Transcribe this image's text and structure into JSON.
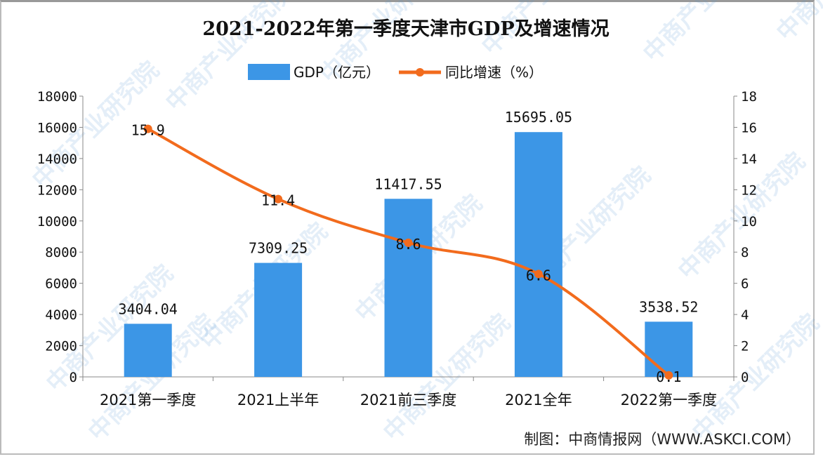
{
  "chart_data": {
    "type": "bar+line",
    "title": "2021-2022年第一季度天津市GDP及增速情况",
    "categories": [
      "2021第一季度",
      "2021上半年",
      "2021前三季度",
      "2021全年",
      "2022第一季度"
    ],
    "series": [
      {
        "name": "GDP（亿元）",
        "type": "bar",
        "axis": "left",
        "color": "#3c96e6",
        "values": [
          3404.04,
          7309.25,
          11417.55,
          15695.05,
          3538.52
        ],
        "labels": [
          "3404.04",
          "7309.25",
          "11417.55",
          "15695.05",
          "3538.52"
        ]
      },
      {
        "name": "同比增速（%）",
        "type": "line",
        "axis": "right",
        "color": "#f26b1d",
        "values": [
          15.9,
          11.4,
          8.6,
          6.6,
          0.1
        ],
        "labels": [
          "15.9",
          "11.4",
          "8.6",
          "6.6",
          "0.1"
        ]
      }
    ],
    "y_left": {
      "range": [
        0,
        18000
      ],
      "ticks": [
        "0",
        "2000",
        "4000",
        "6000",
        "8000",
        "10000",
        "12000",
        "14000",
        "16000",
        "18000"
      ]
    },
    "y_right": {
      "range": [
        0,
        18
      ],
      "ticks": [
        "0",
        "2",
        "4",
        "6",
        "8",
        "10",
        "12",
        "14",
        "16",
        "18"
      ]
    },
    "grid": false,
    "legend_position": "top"
  },
  "source": "制图：中商情报网（WWW.ASKCI.COM）",
  "watermark": "中商产业研究院"
}
